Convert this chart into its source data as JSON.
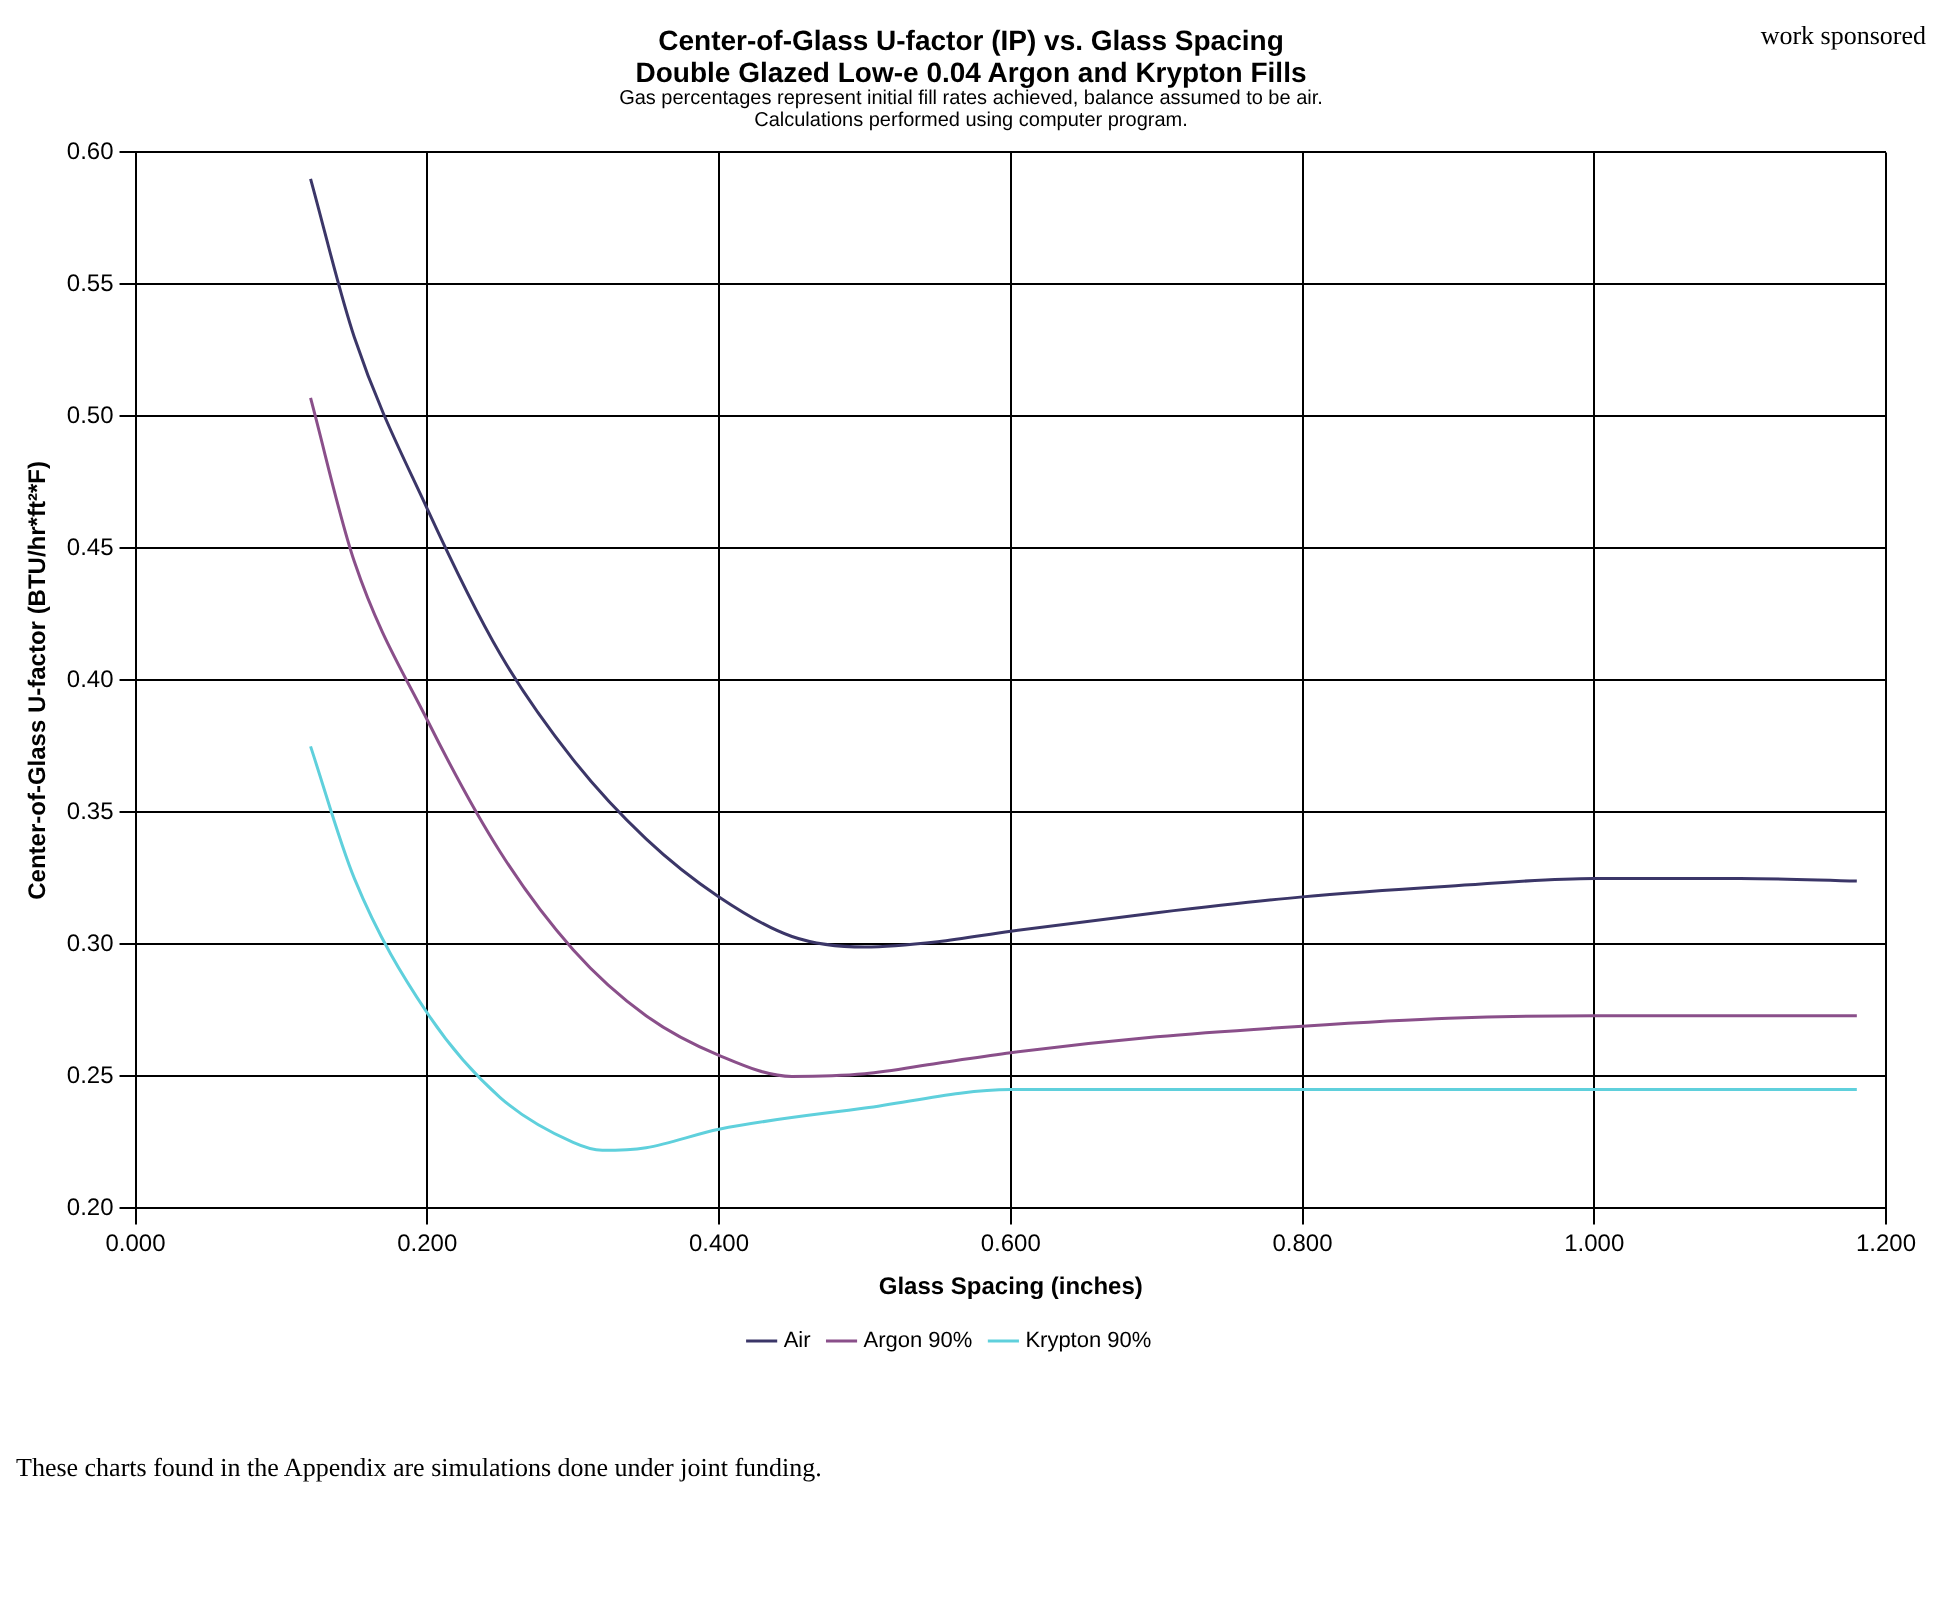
{
  "chart_data": {
    "type": "line",
    "title": "Center-of-Glass U-factor (IP) vs. Glass Spacing",
    "subtitle": "Double Glazed Low-e 0.04 Argon and Krypton Fills",
    "xlabel": "Glass Spacing (inches)",
    "ylabel": "Center-of-Glass U-factor (BTU/hr*ft²*F)",
    "annotations": [
      "Gas percentages represent initial fill rates achieved, balance assumed to be air.",
      "Calculations performed using computer program.",
      "work sponsored",
      "These charts found in the Appendix are simulations done under joint funding."
    ],
    "series": [
      {
        "name": "Air",
        "color": "#3b3668",
        "x": [
          0.12,
          0.15,
          0.2,
          0.25,
          0.3,
          0.35,
          0.4,
          0.45,
          0.5,
          0.55,
          0.6,
          0.7,
          0.8,
          0.9,
          1.0,
          1.1,
          1.18
        ],
        "values": [
          0.59,
          0.53,
          0.465,
          0.41,
          0.37,
          0.34,
          0.318,
          0.303,
          0.299,
          0.301,
          0.305,
          0.312,
          0.318,
          0.322,
          0.325,
          0.325,
          0.324
        ]
      },
      {
        "name": "Argon 90%",
        "color": "#8a4f8a",
        "x": [
          0.12,
          0.15,
          0.2,
          0.25,
          0.3,
          0.35,
          0.4,
          0.45,
          0.5,
          0.55,
          0.6,
          0.7,
          0.8,
          0.9,
          1.0,
          1.1,
          1.18
        ],
        "values": [
          0.507,
          0.445,
          0.385,
          0.335,
          0.298,
          0.273,
          0.258,
          0.25,
          0.251,
          0.255,
          0.259,
          0.265,
          0.269,
          0.272,
          0.273,
          0.273,
          0.273
        ]
      },
      {
        "name": "Krypton 90%",
        "color": "#5fd0dc",
        "x": [
          0.12,
          0.15,
          0.2,
          0.25,
          0.3,
          0.32,
          0.35,
          0.4,
          0.5,
          0.6,
          0.7,
          0.8,
          1.0,
          1.18
        ],
        "values": [
          0.375,
          0.325,
          0.274,
          0.242,
          0.225,
          0.222,
          0.223,
          0.23,
          0.238,
          0.245,
          0.245,
          0.245,
          0.245,
          0.245
        ]
      }
    ],
    "xlim": [
      0,
      1.2
    ],
    "xticks": [
      {
        "value": 0,
        "label": "0.000"
      },
      {
        "value": 0.2,
        "label": "0.200"
      },
      {
        "value": 0.4,
        "label": "0.400"
      },
      {
        "value": 0.6,
        "label": "0.600"
      },
      {
        "value": 0.8,
        "label": "0.800"
      },
      {
        "value": 1,
        "label": "1.000"
      },
      {
        "value": 1.2,
        "label": "1.200"
      }
    ],
    "ylim": [
      0.2,
      0.6
    ],
    "yticks": [
      {
        "value": 0.2,
        "label": "0.20"
      },
      {
        "value": 0.25,
        "label": "0.25"
      },
      {
        "value": 0.3,
        "label": "0.30"
      },
      {
        "value": 0.35,
        "label": "0.35"
      },
      {
        "value": 0.4,
        "label": "0.40"
      },
      {
        "value": 0.45,
        "label": "0.45"
      },
      {
        "value": 0.5,
        "label": "0.50"
      },
      {
        "value": 0.55,
        "label": "0.55"
      },
      {
        "value": 0.6,
        "label": "0.60"
      }
    ],
    "grid": true,
    "legend": "bottom",
    "marker": "none",
    "line_style": "solid"
  }
}
